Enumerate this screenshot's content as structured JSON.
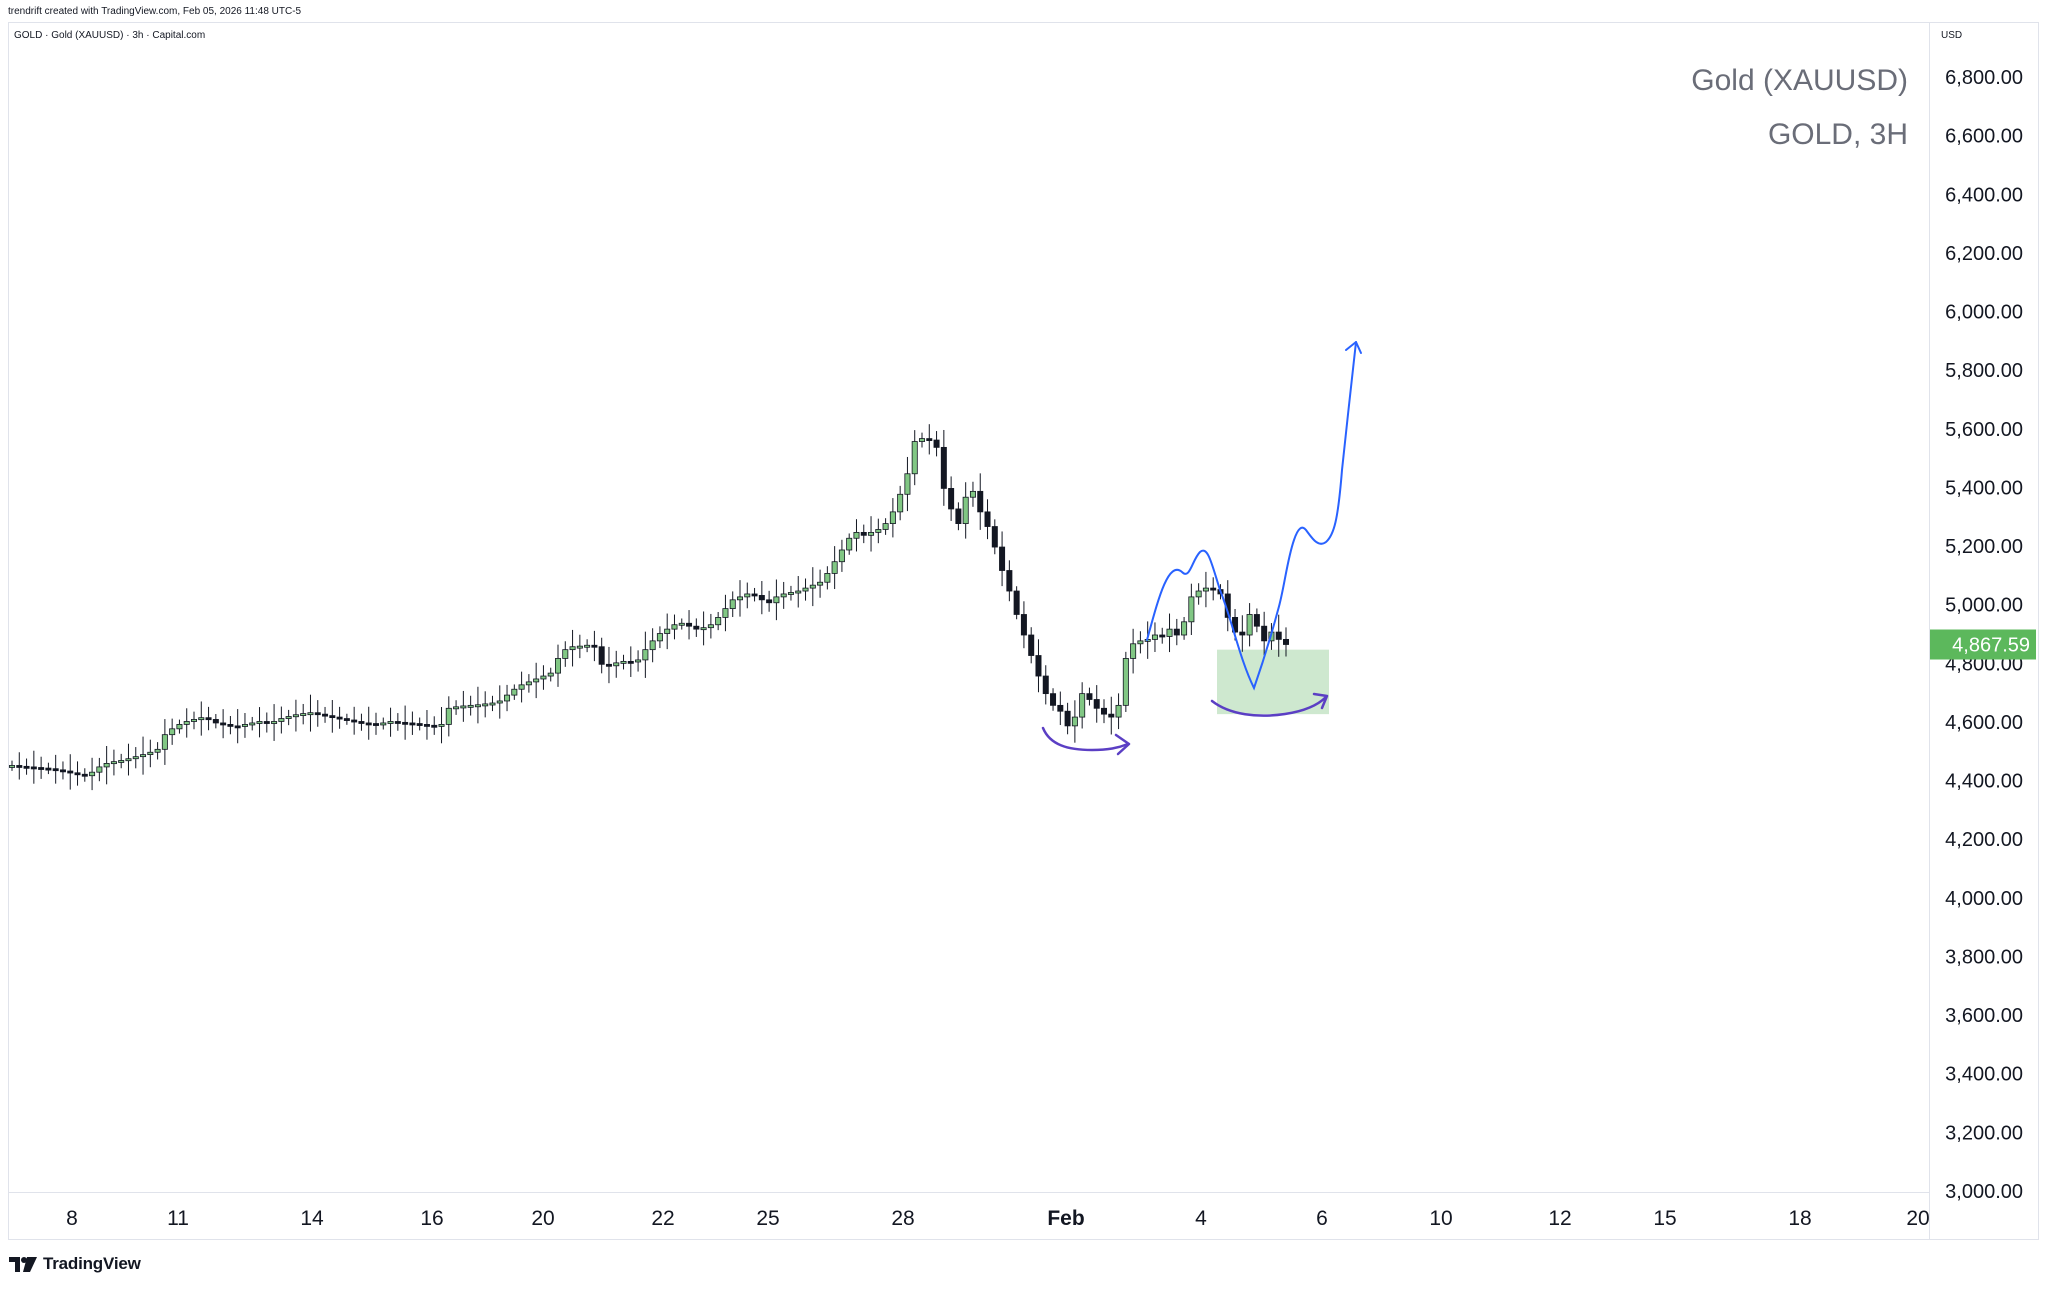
{
  "header": {
    "credit": "trendrift created with TradingView.com, Feb 05, 2026 11:48 UTC-5",
    "symbol_line": "GOLD · Gold (XAUUSD) · 3h · Capital.com"
  },
  "watermark": {
    "title": "Gold (XAUUSD)",
    "subtitle": "GOLD, 3H"
  },
  "price_axis": {
    "currency": "USD"
  },
  "logo": {
    "text": "TradingView",
    "icon": "tradingview-logo-icon"
  },
  "colors": {
    "up": "#81c784",
    "down": "#131722",
    "last_price_bg": "#5cb85c",
    "projection_line": "#2962ff",
    "arrow_curve": "#5b3fc4",
    "zone_fill": "#a5d6a7"
  },
  "chart_data": {
    "type": "candlestick",
    "title": "Gold (XAUUSD)",
    "timeframe": "3h",
    "yticks": [
      6800,
      6600,
      6400,
      6200,
      6000,
      5800,
      5600,
      5400,
      5200,
      5000,
      4800,
      4600,
      4400,
      4200,
      4000,
      3800,
      3600,
      3400,
      3200,
      3000
    ],
    "ylim": [
      3000,
      6800
    ],
    "ytick_labels": [
      "6,800.00",
      "6,600.00",
      "6,400.00",
      "6,200.00",
      "6,000.00",
      "5,800.00",
      "5,600.00",
      "5,400.00",
      "5,200.00",
      "5,000.00",
      "4,800.00",
      "4,600.00",
      "4,400.00",
      "4,200.00",
      "4,000.00",
      "3,800.00",
      "3,600.00",
      "3,400.00",
      "3,200.00",
      "3,000.00"
    ],
    "xticks": [
      {
        "label": "8",
        "bold": false
      },
      {
        "label": "11",
        "bold": false
      },
      {
        "label": "14",
        "bold": false
      },
      {
        "label": "16",
        "bold": false
      },
      {
        "label": "20",
        "bold": false
      },
      {
        "label": "22",
        "bold": false
      },
      {
        "label": "25",
        "bold": false
      },
      {
        "label": "28",
        "bold": false
      },
      {
        "label": "Feb",
        "bold": true
      },
      {
        "label": "4",
        "bold": false
      },
      {
        "label": "6",
        "bold": false
      },
      {
        "label": "10",
        "bold": false
      },
      {
        "label": "12",
        "bold": false
      },
      {
        "label": "15",
        "bold": false
      },
      {
        "label": "18",
        "bold": false
      },
      {
        "label": "20",
        "bold": false
      }
    ],
    "last_price": 4867.59,
    "last_price_label": "4,867.59",
    "closes": [
      4455,
      4452,
      4450,
      4448,
      4446,
      4444,
      4440,
      4436,
      4430,
      4425,
      4420,
      4432,
      4450,
      4462,
      4468,
      4472,
      4478,
      4485,
      4492,
      4500,
      4510,
      4560,
      4580,
      4595,
      4605,
      4612,
      4618,
      4612,
      4600,
      4595,
      4590,
      4588,
      4595,
      4600,
      4605,
      4598,
      4605,
      4615,
      4622,
      4628,
      4632,
      4635,
      4630,
      4625,
      4620,
      4615,
      4610,
      4605,
      4600,
      4598,
      4596,
      4600,
      4605,
      4602,
      4600,
      4598,
      4595,
      4592,
      4590,
      4595,
      4650,
      4655,
      4658,
      4660,
      4662,
      4665,
      4668,
      4675,
      4695,
      4715,
      4730,
      4740,
      4750,
      4760,
      4770,
      4820,
      4850,
      4860,
      4862,
      4865,
      4860,
      4800,
      4795,
      4805,
      4810,
      4808,
      4815,
      4850,
      4880,
      4905,
      4920,
      4935,
      4940,
      4930,
      4920,
      4925,
      4935,
      4960,
      4990,
      5020,
      5030,
      5040,
      5035,
      5020,
      5010,
      5030,
      5040,
      5045,
      5050,
      5060,
      5070,
      5080,
      5110,
      5150,
      5190,
      5230,
      5250,
      5240,
      5250,
      5260,
      5280,
      5320,
      5380,
      5450,
      5560,
      5570,
      5565,
      5540,
      5400,
      5330,
      5280,
      5370,
      5390,
      5320,
      5270,
      5200,
      5120,
      5050,
      4970,
      4900,
      4830,
      4760,
      4700,
      4660,
      4640,
      4590,
      4620,
      4700,
      4680,
      4650,
      4630,
      4620,
      4660,
      4820,
      4870,
      4880,
      4885,
      4900,
      4895,
      4920,
      4900,
      4945,
      5030,
      5050,
      5060,
      5055,
      5040,
      4960,
      4910,
      4900,
      4970,
      4930,
      4880,
      4910,
      4885,
      4867.59
    ],
    "annotations": {
      "projection_path_prices": [
        4930,
        5090,
        5190,
        5000,
        4720,
        4950,
        5250,
        5200,
        5900
      ],
      "demand_zone": {
        "price_top": 4850,
        "price_bottom": 4630
      },
      "arrow_curve_1": "curved arrow below the 4,600 low",
      "arrow_curve_2": "curved arrow inside demand zone"
    }
  }
}
